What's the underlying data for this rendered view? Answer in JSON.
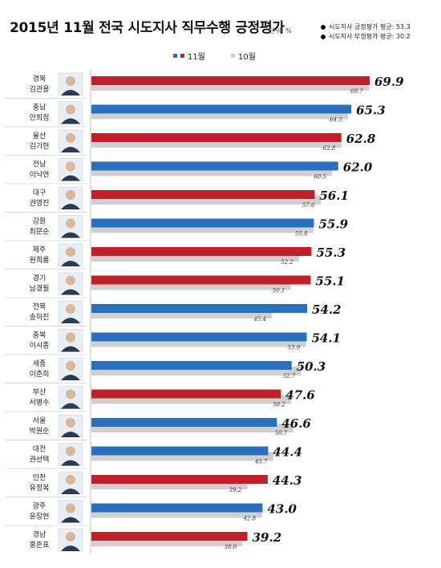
{
  "title": "2015년 11월 전국 시도지사 직무수행 긍정평가",
  "unit": "단위: %",
  "averages": [
    "시도지사 긍정평가 평균: 53.3",
    "시도지사 부정평가 평균: 30.2"
  ],
  "colors": {
    "red": "#c0202a",
    "blue": "#2a6fbe",
    "gray": "#d0d0d0"
  },
  "chart_data": {
    "type": "bar",
    "orientation": "horizontal",
    "legend_position": "top-center",
    "series": [
      {
        "name": "11월",
        "values": [
          69.9,
          65.3,
          62.8,
          62.0,
          56.1,
          55.9,
          55.3,
          55.1,
          54.2,
          54.1,
          50.3,
          47.6,
          46.6,
          44.4,
          44.3,
          43.0,
          39.2
        ]
      },
      {
        "name": "10월",
        "values": [
          69.7,
          64.5,
          62.8,
          60.5,
          57.6,
          55.8,
          52.2,
          50.1,
          45.4,
          53.9,
          52.7,
          50.2,
          50.7,
          45.7,
          39.2,
          42.8,
          38.0
        ]
      }
    ],
    "nov_labels": [
      "69.9",
      "65.3",
      "62.8",
      "62.0",
      "56.1",
      "55.9",
      "55.3",
      "55.1",
      "54.2",
      "54.1",
      "50.3",
      "47.6",
      "46.6",
      "44.4",
      "44.3",
      "43.0",
      "39.2"
    ],
    "oct_labels": [
      "69.7",
      "64.5",
      "62.8",
      "60.5",
      "57.6",
      "55.8",
      "52.2",
      "50.1",
      "45.4",
      "53.9",
      "52.7",
      "50.2",
      "50.7",
      "45.7",
      "39.2",
      "42.8",
      "38.0"
    ],
    "bar_colors": [
      "red",
      "blue",
      "red",
      "blue",
      "red",
      "blue",
      "red",
      "red",
      "blue",
      "blue",
      "blue",
      "red",
      "blue",
      "blue",
      "red",
      "blue",
      "red"
    ],
    "categories": [
      {
        "region": "경북",
        "governor": "김관용"
      },
      {
        "region": "충남",
        "governor": "안희정"
      },
      {
        "region": "울산",
        "governor": "김기현"
      },
      {
        "region": "전남",
        "governor": "이낙연"
      },
      {
        "region": "대구",
        "governor": "권영진"
      },
      {
        "region": "강원",
        "governor": "최문순"
      },
      {
        "region": "제주",
        "governor": "원희룡"
      },
      {
        "region": "경기",
        "governor": "남경필"
      },
      {
        "region": "전북",
        "governor": "송하진"
      },
      {
        "region": "충북",
        "governor": "이시종"
      },
      {
        "region": "세종",
        "governor": "이춘희"
      },
      {
        "region": "부산",
        "governor": "서병수"
      },
      {
        "region": "서울",
        "governor": "박원순"
      },
      {
        "region": "대전",
        "governor": "권선택"
      },
      {
        "region": "인천",
        "governor": "유정복"
      },
      {
        "region": "광주",
        "governor": "윤장현"
      },
      {
        "region": "경남",
        "governor": "홍준표"
      }
    ]
  }
}
